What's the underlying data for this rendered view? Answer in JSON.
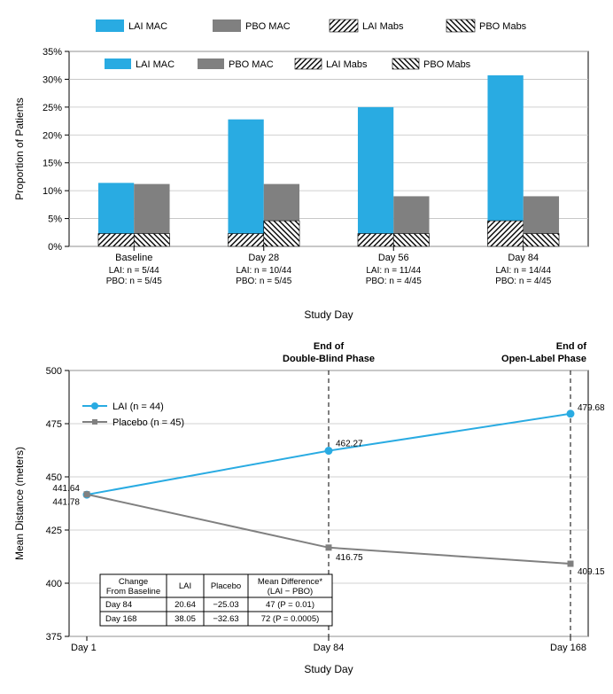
{
  "bar_chart": {
    "type": "bar",
    "ylabel": "Proportion of Patients",
    "xlabel": "Study Day",
    "ylim": [
      0,
      35
    ],
    "ytick_step": 5,
    "ytick_suffix": "%",
    "background_color": "#ffffff",
    "grid_color": "#c0c0c0",
    "plot_border_color": "#000000",
    "categories": [
      "Baseline",
      "Day 28",
      "Day 56",
      "Day 84"
    ],
    "sub_labels": [
      [
        "LAI: n = 5/44",
        "PBO: n = 5/45"
      ],
      [
        "LAI: n = 10/44",
        "PBO: n = 5/45"
      ],
      [
        "LAI: n = 11/44",
        "PBO: n = 4/45"
      ],
      [
        "LAI: n = 14/44",
        "PBO: n = 4/45"
      ]
    ],
    "series": [
      {
        "name": "LAI MAC",
        "color": "#29abe2",
        "pattern": "solid",
        "values": [
          11.4,
          22.8,
          25.0,
          31.8
        ]
      },
      {
        "name": "PBO MAC",
        "color": "#808080",
        "pattern": "solid",
        "values": [
          11.2,
          11.2,
          9.0,
          9.0
        ]
      },
      {
        "name": "LAI Mabs",
        "color": "#1a1a1a",
        "pattern": "hatch-right",
        "values": [
          2.3,
          2.3,
          2.3,
          4.6
        ]
      },
      {
        "name": "PBO Mabs",
        "color": "#1a1a1a",
        "pattern": "hatch-left",
        "values": [
          2.3,
          4.6,
          2.3,
          2.3
        ]
      }
    ],
    "legend": {
      "position": "top",
      "columns": 4
    },
    "bar_group_width": 0.55,
    "label_fontsize": 12,
    "tick_fontsize": 11
  },
  "line_chart": {
    "type": "line",
    "ylabel": "Mean Distance (meters)",
    "xlabel": "Study Day",
    "ylim": [
      375,
      500
    ],
    "ytick_step": 25,
    "x_categories": [
      "Day 1",
      "Day 84",
      "Day 168"
    ],
    "x_positions": [
      0,
      1,
      2
    ],
    "background_color": "#ffffff",
    "grid_color": "#c0c0c0",
    "plot_border_color": "#000000",
    "series": [
      {
        "name": "LAI (n = 44)",
        "color": "#29abe2",
        "marker": "circle",
        "marker_size": 6,
        "line_width": 2,
        "values": [
          441.64,
          462.27,
          479.68
        ],
        "value_labels": [
          "441.64",
          "462.27",
          "479.68"
        ]
      },
      {
        "name": "Placebo (n = 45)",
        "color": "#808080",
        "marker": "square",
        "marker_size": 6,
        "line_width": 2,
        "values": [
          441.78,
          416.75,
          409.15
        ],
        "value_labels": [
          "441.78",
          "416.75",
          "409.15"
        ]
      }
    ],
    "phase_lines": [
      {
        "x": 1,
        "label_top": "End of",
        "label_bottom": "Double-Blind Phase"
      },
      {
        "x": 2,
        "label_top": "End of",
        "label_bottom": "Open-Label Phase"
      }
    ],
    "legend": {
      "position": "upper-left"
    },
    "table": {
      "headers": [
        "Change\nFrom Baseline",
        "LAI",
        "Placebo",
        "Mean Difference*\n(LAI − PBO)"
      ],
      "rows": [
        [
          "Day 84",
          "20.64",
          "−25.03",
          "47 (P = 0.01)"
        ],
        [
          "Day 168",
          "38.05",
          "−32.63",
          "72 (P = 0.0005)"
        ]
      ],
      "border_color": "#000000"
    },
    "label_fontsize": 12,
    "tick_fontsize": 11
  }
}
